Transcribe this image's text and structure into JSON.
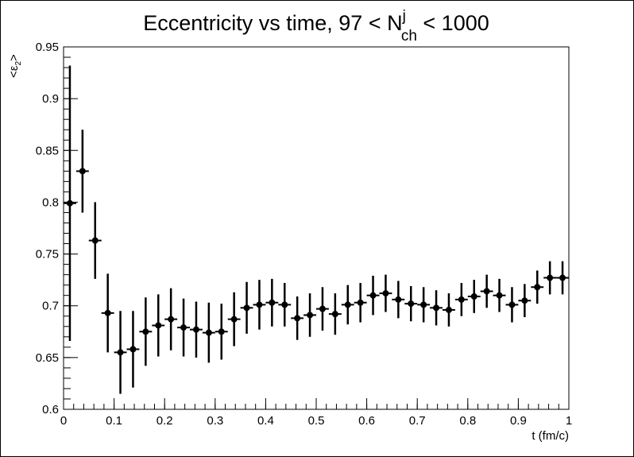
{
  "chart_data": {
    "type": "scatter",
    "title": {
      "main": "Eccentricity vs time, 97 < N",
      "superscript": "j",
      "subscript": "ch",
      "suffix": " < 1000"
    },
    "xlabel": "t (fm/c)",
    "ylabel": {
      "left": "<ε",
      "subscript": "2",
      "right": ">"
    },
    "xlim": [
      0,
      1
    ],
    "ylim": [
      0.6,
      0.95
    ],
    "x_ticks": [
      "0",
      "0.1",
      "0.2",
      "0.3",
      "0.4",
      "0.5",
      "0.6",
      "0.7",
      "0.8",
      "0.9",
      "1"
    ],
    "y_ticks": [
      "0.6",
      "0.65",
      "0.7",
      "0.75",
      "0.8",
      "0.85",
      "0.9",
      "0.95"
    ],
    "grid": false,
    "marker_color": "#000000",
    "bin_width": 0.025,
    "x": [
      0.0125,
      0.0375,
      0.0625,
      0.0875,
      0.1125,
      0.1375,
      0.1625,
      0.1875,
      0.2125,
      0.2375,
      0.2625,
      0.2875,
      0.3125,
      0.3375,
      0.3625,
      0.3875,
      0.4125,
      0.4375,
      0.4625,
      0.4875,
      0.5125,
      0.5375,
      0.5625,
      0.5875,
      0.6125,
      0.6375,
      0.6625,
      0.6875,
      0.7125,
      0.7375,
      0.7625,
      0.7875,
      0.8125,
      0.8375,
      0.8625,
      0.8875,
      0.9125,
      0.9375,
      0.9625,
      0.9875
    ],
    "y": [
      0.799,
      0.83,
      0.763,
      0.693,
      0.655,
      0.658,
      0.675,
      0.681,
      0.687,
      0.679,
      0.677,
      0.674,
      0.675,
      0.687,
      0.698,
      0.701,
      0.703,
      0.701,
      0.688,
      0.691,
      0.697,
      0.692,
      0.701,
      0.703,
      0.71,
      0.712,
      0.706,
      0.702,
      0.701,
      0.698,
      0.696,
      0.706,
      0.709,
      0.714,
      0.71,
      0.701,
      0.705,
      0.718,
      0.727,
      0.727
    ],
    "y_err": [
      0.133,
      0.04,
      0.037,
      0.038,
      0.04,
      0.037,
      0.033,
      0.03,
      0.03,
      0.028,
      0.027,
      0.029,
      0.027,
      0.026,
      0.025,
      0.024,
      0.023,
      0.021,
      0.021,
      0.021,
      0.021,
      0.02,
      0.019,
      0.019,
      0.019,
      0.018,
      0.018,
      0.017,
      0.017,
      0.017,
      0.016,
      0.016,
      0.016,
      0.016,
      0.016,
      0.017,
      0.016,
      0.016,
      0.016,
      0.016
    ]
  }
}
